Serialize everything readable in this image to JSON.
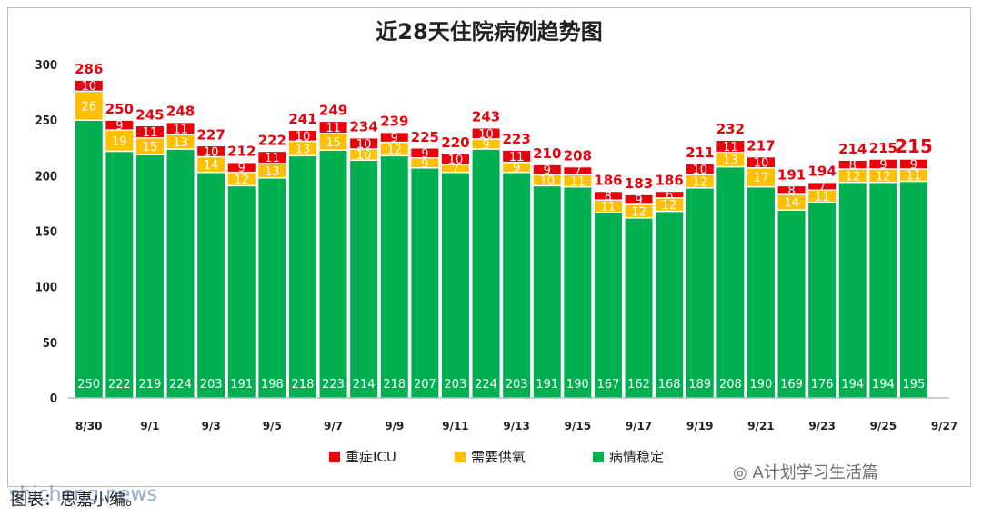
{
  "chart_data": {
    "type": "bar",
    "stacked": true,
    "title": "近28天住院病例趋势图",
    "ylim": [
      0,
      300
    ],
    "yticks": [
      0,
      50,
      100,
      150,
      200,
      250,
      300
    ],
    "grid": false,
    "legend_position": "bottom",
    "categories": [
      "8/30",
      "8/31",
      "9/1",
      "9/2",
      "9/3",
      "9/4",
      "9/5",
      "9/6",
      "9/7",
      "9/8",
      "9/9",
      "9/10",
      "9/11",
      "9/12",
      "9/13",
      "9/14",
      "9/15",
      "9/16",
      "9/17",
      "9/18",
      "9/19",
      "9/20",
      "9/21",
      "9/22",
      "9/23",
      "9/24",
      "9/25",
      "9/26"
    ],
    "xtick_labels": [
      "8/30",
      "9/1",
      "9/3",
      "9/5",
      "9/7",
      "9/9",
      "9/11",
      "9/13",
      "9/15",
      "9/17",
      "9/19",
      "9/21",
      "9/23",
      "9/25",
      "9/27"
    ],
    "series": [
      {
        "name": "病情稳定",
        "color": "#00b050",
        "values": [
          250,
          222,
          219,
          224,
          203,
          191,
          198,
          218,
          223,
          214,
          218,
          207,
          203,
          224,
          203,
          191,
          190,
          167,
          162,
          168,
          189,
          208,
          190,
          169,
          176,
          194,
          194,
          195
        ]
      },
      {
        "name": "需要供氧",
        "color": "#ffc000",
        "values": [
          26,
          19,
          15,
          13,
          14,
          12,
          13,
          13,
          15,
          10,
          12,
          9,
          7,
          9,
          9,
          10,
          11,
          11,
          12,
          12,
          12,
          13,
          17,
          14,
          11,
          12,
          12,
          11
        ]
      },
      {
        "name": "重症ICU",
        "color": "#e8000b",
        "values": [
          10,
          9,
          11,
          11,
          10,
          9,
          11,
          10,
          11,
          10,
          9,
          9,
          10,
          10,
          11,
          9,
          7,
          8,
          9,
          6,
          10,
          11,
          10,
          8,
          7,
          8,
          9,
          9
        ]
      }
    ],
    "totals": [
      286,
      250,
      245,
      248,
      227,
      212,
      222,
      241,
      249,
      234,
      239,
      225,
      220,
      243,
      223,
      210,
      208,
      186,
      183,
      186,
      211,
      232,
      217,
      191,
      194,
      214,
      215,
      215
    ]
  },
  "caption": "图表：思嘉小编。",
  "watermark_site": "shicheng.news",
  "watermark_wechat": "A计划学习生活篇"
}
